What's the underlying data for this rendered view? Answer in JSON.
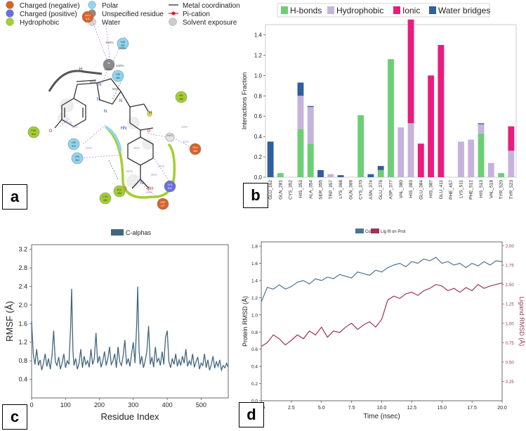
{
  "panel_labels": {
    "a": "a",
    "b": "b",
    "c": "c",
    "d": "d"
  },
  "panel_a": {
    "legend": [
      {
        "label": "Charged (negative)",
        "color": "#d9622b"
      },
      {
        "label": "Charged (positive)",
        "color": "#6b6ee0"
      },
      {
        "label": "Hydrophobic",
        "color": "#a3cf2f"
      },
      {
        "label": "Polar",
        "color": "#8fd6f0"
      },
      {
        "label": "Unspecified residue",
        "color": "#8a8a8a"
      },
      {
        "label": "Water",
        "color": "#d8d8d8"
      },
      {
        "label": "Metal coordination",
        "color": "#222222"
      },
      {
        "label": "Pi-cation",
        "color": "#e0102f"
      },
      {
        "label": "Solvent exposure",
        "color": "#cccccc"
      }
    ],
    "residues": [
      {
        "name": "GLU 411",
        "kind": "neg"
      },
      {
        "name": "HIS 387",
        "kind": "polar"
      },
      {
        "name": "HIS 383",
        "kind": "polar"
      },
      {
        "name": "VAL 380",
        "kind": "hyd"
      },
      {
        "name": "PHE 512",
        "kind": "hyd"
      },
      {
        "name": "HIS 513",
        "kind": "polar"
      },
      {
        "name": "HIS 353",
        "kind": "polar"
      },
      {
        "name": "GLU 384",
        "kind": "neg"
      },
      {
        "name": "LYS 511",
        "kind": "pos"
      },
      {
        "name": "CYS 352",
        "kind": "hyd"
      },
      {
        "name": "ALA 354",
        "kind": "hyd"
      },
      {
        "name": "ASP 377",
        "kind": "neg"
      },
      {
        "name": "Zn",
        "kind": "metal"
      },
      {
        "name": "H2O",
        "kind": "water"
      }
    ],
    "percents": [
      "100%",
      "100%",
      "100%",
      "100%",
      "56%",
      "50%",
      "36%",
      "53%",
      "34%",
      "30%",
      "31%",
      "32%",
      "35%",
      "50%",
      "33%",
      "46%"
    ],
    "atom_labels": [
      "N",
      "N",
      "N",
      "N",
      "H",
      "HN",
      "O",
      "N",
      "HO",
      "OH",
      "O",
      "H"
    ]
  },
  "chart_data": [
    {
      "type": "bar",
      "stacked": true,
      "ylabel": "Interactions Fraction",
      "xlabel": "",
      "ylim": [
        0,
        1.5
      ],
      "yticks": [
        0.0,
        0.2,
        0.4,
        0.6,
        0.8,
        1.0,
        1.2,
        1.4
      ],
      "legend_position": "top",
      "categories": [
        "GLU_162",
        "GLN_281",
        "CYS_352",
        "HIS_353",
        "ALA_354",
        "SER_355",
        "TRP_357",
        "LYS_368",
        "GLN_369",
        "CYS_370",
        "ASN_374",
        "GLU_376",
        "ASP_377",
        "VAL_380",
        "HIS_383",
        "GLU_384",
        "HIS_387",
        "GLU_411",
        "PHE_457",
        "LYS_511",
        "PHE_512",
        "HIS_513",
        "VAL_518",
        "TYR_520",
        "TYR_523"
      ],
      "series": [
        {
          "name": "H-bonds",
          "color": "#6dce76",
          "values": [
            0,
            0.04,
            0,
            0.47,
            0.33,
            0,
            0,
            0,
            0,
            0.61,
            0,
            0.07,
            1.16,
            0,
            0,
            0,
            0,
            0,
            0,
            0,
            0,
            0.43,
            0,
            0.04,
            0
          ]
        },
        {
          "name": "Hydrophobic",
          "color": "#c5b3dd",
          "values": [
            0,
            0,
            0,
            0.33,
            0.36,
            0,
            0.03,
            0,
            0,
            0,
            0,
            0,
            0,
            0.49,
            0.53,
            0,
            0,
            0,
            0,
            0.35,
            0.37,
            0.09,
            0.14,
            0,
            0.26
          ]
        },
        {
          "name": "Ionic",
          "color": "#ea1c7c",
          "values": [
            0,
            0,
            0,
            0,
            0,
            0,
            0,
            0,
            0,
            0,
            0,
            0,
            0,
            0,
            1.02,
            0.33,
            1.0,
            1.3,
            0,
            0,
            0,
            0,
            0,
            0,
            0.24
          ]
        },
        {
          "name": "Water bridges",
          "color": "#2f5f9e",
          "values": [
            0.35,
            0,
            0,
            0.13,
            0.01,
            0.07,
            0,
            0.02,
            0,
            0,
            0.03,
            0.04,
            0,
            0,
            0,
            0,
            0,
            0,
            0,
            0,
            0,
            0.01,
            0,
            0,
            0
          ]
        }
      ]
    },
    {
      "type": "line",
      "title": "",
      "legend": [
        "C-alphas"
      ],
      "xlabel": "Residue Index",
      "ylabel": "RMSF (Å)",
      "xlim": [
        0,
        580
      ],
      "ylim": [
        0,
        3.3
      ],
      "xticks": [
        0,
        100,
        200,
        300,
        400,
        500
      ],
      "yticks": [
        0.4,
        0.8,
        1.2,
        1.6,
        2.0,
        2.4,
        2.8,
        3.2
      ],
      "color": "#43667f",
      "x": [
        0,
        5,
        10,
        15,
        20,
        25,
        30,
        35,
        40,
        45,
        50,
        55,
        60,
        65,
        70,
        75,
        80,
        85,
        90,
        95,
        100,
        105,
        110,
        115,
        118,
        122,
        125,
        130,
        135,
        140,
        145,
        150,
        155,
        160,
        165,
        170,
        175,
        180,
        185,
        190,
        195,
        200,
        205,
        210,
        215,
        220,
        225,
        230,
        235,
        240,
        245,
        250,
        255,
        260,
        265,
        270,
        275,
        280,
        285,
        290,
        295,
        300,
        305,
        310,
        313,
        317,
        320,
        325,
        330,
        335,
        340,
        345,
        350,
        355,
        360,
        365,
        370,
        375,
        380,
        385,
        390,
        395,
        400,
        405,
        410,
        415,
        420,
        425,
        430,
        435,
        440,
        445,
        450,
        455,
        460,
        465,
        470,
        475,
        480,
        485,
        490,
        495,
        500,
        505,
        510,
        515,
        520,
        525,
        530,
        535,
        540,
        545,
        550,
        555,
        560,
        565,
        570,
        575,
        580
      ],
      "y": [
        1.65,
        0.95,
        0.72,
        1.05,
        0.7,
        0.82,
        0.6,
        0.75,
        0.95,
        0.68,
        0.85,
        0.62,
        0.9,
        1.45,
        0.78,
        0.7,
        0.88,
        0.62,
        0.75,
        0.95,
        0.65,
        0.8,
        0.72,
        1.5,
        2.35,
        1.0,
        0.7,
        0.85,
        0.62,
        0.75,
        1.05,
        0.65,
        0.9,
        0.72,
        0.8,
        0.66,
        1.05,
        0.72,
        0.85,
        1.4,
        0.75,
        0.9,
        0.66,
        0.8,
        1.0,
        0.7,
        0.85,
        1.1,
        0.72,
        0.8,
        0.95,
        0.65,
        1.1,
        0.78,
        0.7,
        0.9,
        1.25,
        0.72,
        0.85,
        0.68,
        0.95,
        1.2,
        0.75,
        1.6,
        2.4,
        1.05,
        0.72,
        0.9,
        0.65,
        0.8,
        1.0,
        1.55,
        0.72,
        0.88,
        0.66,
        1.1,
        0.78,
        0.85,
        0.7,
        1.0,
        0.72,
        1.3,
        1.45,
        0.78,
        0.65,
        0.85,
        0.72,
        0.95,
        0.68,
        0.82,
        0.7,
        0.9,
        0.75,
        1.05,
        0.68,
        0.8,
        0.72,
        0.95,
        0.66,
        0.78,
        0.88,
        0.62,
        0.75,
        0.7,
        0.95,
        0.65,
        0.82,
        0.6,
        0.72,
        0.9,
        0.64,
        0.78,
        0.68,
        0.82,
        0.6,
        0.7,
        0.65,
        0.75,
        0.66
      ]
    },
    {
      "type": "line",
      "legend": [
        "Cα",
        "Lig fit on Prot"
      ],
      "xlabel": "Time (nsec)",
      "ylabel": "Protein RMSD (Å)",
      "ylabel_right": "Ligand RMSD (Å)",
      "xlim": [
        0,
        20
      ],
      "ylim": [
        0.0,
        1.85
      ],
      "ylim_right": [
        0.0,
        2.05
      ],
      "xticks": [
        0.0,
        2.5,
        5.0,
        7.5,
        10.0,
        12.5,
        15.0,
        17.5,
        20.0
      ],
      "xtick_labels": [
        "0.0",
        "2.5",
        "5.0",
        "7.5",
        "10.0",
        "12.5",
        "15.0",
        "17.5",
        "20.0"
      ],
      "yticks": [
        0.0,
        0.2,
        0.4,
        0.6,
        0.8,
        1.0,
        1.2,
        1.4,
        1.6,
        1.8
      ],
      "yticks_right": [
        0.25,
        0.5,
        0.75,
        1.0,
        1.25,
        1.5,
        1.75,
        2.0
      ],
      "series": [
        {
          "name": "Cα",
          "axis": "left",
          "color": "#4b7590",
          "x": [
            0,
            0.5,
            1,
            1.5,
            2,
            2.5,
            3,
            3.5,
            4,
            4.5,
            5,
            5.5,
            6,
            6.5,
            7,
            7.5,
            8,
            8.5,
            9,
            9.5,
            10,
            10.5,
            11,
            11.5,
            12,
            12.5,
            13,
            13.5,
            14,
            14.5,
            15,
            15.5,
            16,
            16.5,
            17,
            17.5,
            18,
            18.5,
            19,
            19.5,
            20
          ],
          "y": [
            1.15,
            1.32,
            1.3,
            1.35,
            1.3,
            1.33,
            1.38,
            1.4,
            1.36,
            1.42,
            1.4,
            1.44,
            1.42,
            1.47,
            1.45,
            1.43,
            1.5,
            1.48,
            1.46,
            1.52,
            1.5,
            1.55,
            1.58,
            1.6,
            1.56,
            1.62,
            1.6,
            1.65,
            1.63,
            1.67,
            1.6,
            1.62,
            1.58,
            1.6,
            1.55,
            1.6,
            1.57,
            1.62,
            1.58,
            1.63,
            1.62
          ]
        },
        {
          "name": "Lig fit on Prot",
          "axis": "right",
          "color": "#9b3355",
          "x": [
            0,
            0.5,
            1,
            1.5,
            2,
            2.5,
            3,
            3.5,
            4,
            4.5,
            5,
            5.5,
            6,
            6.5,
            7,
            7.5,
            8,
            8.5,
            9,
            9.5,
            10,
            10.5,
            11,
            11.5,
            12,
            12.5,
            13,
            13.5,
            14,
            14.5,
            15,
            15.5,
            16,
            16.5,
            17,
            17.5,
            18,
            18.5,
            19,
            19.5,
            20
          ],
          "y": [
            0.7,
            0.75,
            0.85,
            0.8,
            0.72,
            0.78,
            0.85,
            0.8,
            0.9,
            0.85,
            0.95,
            0.82,
            0.9,
            0.88,
            0.95,
            1.0,
            0.92,
            0.98,
            1.02,
            0.95,
            1.05,
            1.3,
            1.35,
            1.32,
            1.38,
            1.4,
            1.36,
            1.42,
            1.45,
            1.5,
            1.48,
            1.42,
            1.45,
            1.4,
            1.46,
            1.42,
            1.5,
            1.45,
            1.48,
            1.5,
            1.52
          ]
        }
      ]
    }
  ]
}
